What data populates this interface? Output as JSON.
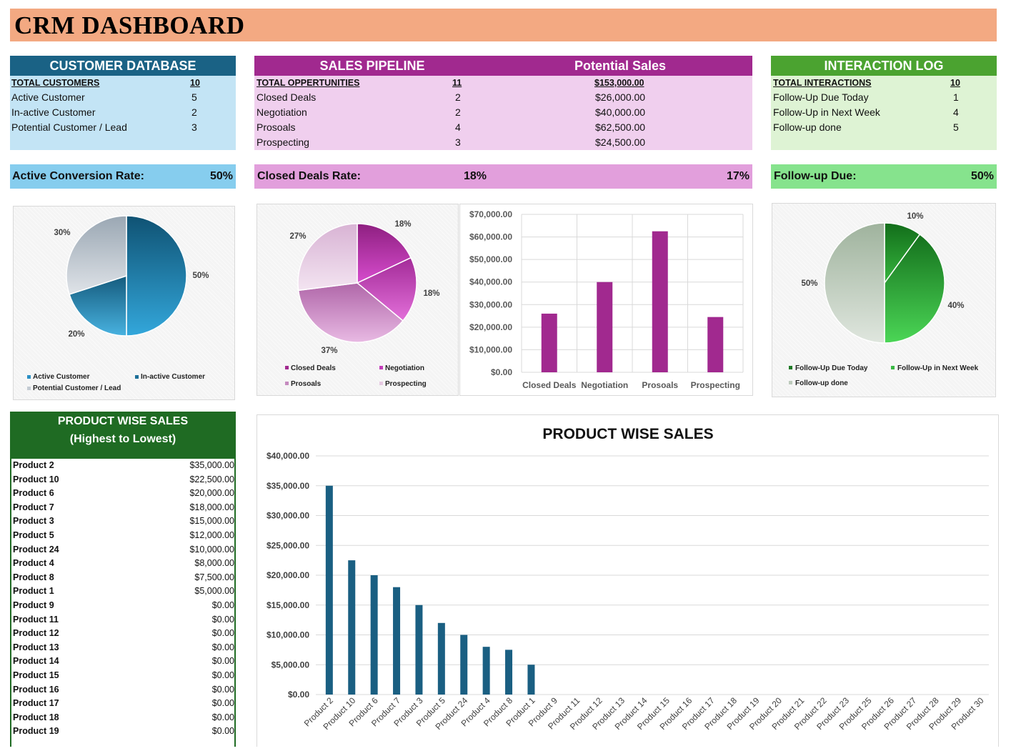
{
  "title": "CRM DASHBOARD",
  "customer_db": {
    "header": "CUSTOMER DATABASE",
    "total_label": "TOTAL CUSTOMERS",
    "total_value": "10",
    "rows": [
      {
        "label": "Active Customer",
        "value": "5"
      },
      {
        "label": "In-active Customer",
        "value": "2"
      },
      {
        "label": "Potential Customer / Lead",
        "value": "3"
      }
    ],
    "rate_label": "Active Conversion Rate:",
    "rate_value": "50%"
  },
  "pipeline": {
    "header": "SALES PIPELINE",
    "header2": "Potential Sales",
    "total_label": "TOTAL OPPERTUNITIES",
    "total_value": "11",
    "total_sales": "$153,000.00",
    "rows": [
      {
        "label": "Closed Deals",
        "value": "2",
        "sales": "$26,000.00"
      },
      {
        "label": "Negotiation",
        "value": "2",
        "sales": "$40,000.00"
      },
      {
        "label": "Prosoals",
        "value": "4",
        "sales": "$62,500.00"
      },
      {
        "label": "Prospecting",
        "value": "3",
        "sales": "$24,500.00"
      }
    ],
    "rate_label": "Closed Deals Rate:",
    "rate_value": "18%",
    "rate_value2": "17%"
  },
  "interaction": {
    "header": "INTERACTION LOG",
    "total_label": "TOTAL INTERACTIONS",
    "total_value": "10",
    "rows": [
      {
        "label": "Follow-Up Due Today",
        "value": "1"
      },
      {
        "label": "Follow-Up in Next Week",
        "value": "4"
      },
      {
        "label": "Follow-up done",
        "value": "5"
      }
    ],
    "rate_label": "Follow-up Due:",
    "rate_value": "50%"
  },
  "product_table": {
    "header1": "PRODUCT WISE SALES",
    "header2": "(Highest to Lowest)",
    "rows": [
      {
        "label": "Product 2",
        "value": "$35,000.00"
      },
      {
        "label": "Product 10",
        "value": "$22,500.00"
      },
      {
        "label": "Product 6",
        "value": "$20,000.00"
      },
      {
        "label": "Product 7",
        "value": "$18,000.00"
      },
      {
        "label": "Product 3",
        "value": "$15,000.00"
      },
      {
        "label": "Product 5",
        "value": "$12,000.00"
      },
      {
        "label": "Product 24",
        "value": "$10,000.00"
      },
      {
        "label": "Product 4",
        "value": "$8,000.00"
      },
      {
        "label": "Product 8",
        "value": "$7,500.00"
      },
      {
        "label": "Product 1",
        "value": "$5,000.00"
      },
      {
        "label": "Product 9",
        "value": "$0.00"
      },
      {
        "label": "Product 11",
        "value": "$0.00"
      },
      {
        "label": "Product 12",
        "value": "$0.00"
      },
      {
        "label": "Product 13",
        "value": "$0.00"
      },
      {
        "label": "Product 14",
        "value": "$0.00"
      },
      {
        "label": "Product 15",
        "value": "$0.00"
      },
      {
        "label": "Product 16",
        "value": "$0.00"
      },
      {
        "label": "Product 17",
        "value": "$0.00"
      },
      {
        "label": "Product 18",
        "value": "$0.00"
      },
      {
        "label": "Product 19",
        "value": "$0.00"
      }
    ]
  },
  "colors": {
    "banner": "#f3a982",
    "customer_header": "#1a6285",
    "customer_body": "#c3e4f5",
    "customer_rate": "#86cdee",
    "pipeline_header": "#a1298f",
    "pipeline_body": "#f0cfee",
    "pipeline_rate": "#e29fdc",
    "interaction_header": "#4ba330",
    "interaction_body": "#def3d4",
    "interaction_rate": "#86e38d",
    "product_header": "#1f6b23",
    "product_bar": "#1a5f82",
    "pipeline_bar": "#a1298f"
  },
  "chart_data": [
    {
      "type": "pie",
      "id": "customer",
      "labels": [
        "Active Customer",
        "In-active Customer",
        "Potential Customer / Lead"
      ],
      "values": [
        50,
        20,
        30
      ],
      "display": [
        "50%",
        "20%",
        "30%"
      ],
      "legend": "bottom"
    },
    {
      "type": "pie",
      "id": "pipeline",
      "labels": [
        "Closed Deals",
        "Negotiation",
        "Prosoals",
        "Prospecting"
      ],
      "values": [
        18,
        18,
        37,
        27
      ],
      "display": [
        "18%",
        "18%",
        "37%",
        "27%"
      ],
      "legend": "bottom"
    },
    {
      "type": "bar",
      "id": "pipeline_sales",
      "categories": [
        "Closed Deals",
        "Negotiation",
        "Prosoals",
        "Prospecting"
      ],
      "values": [
        26000,
        40000,
        62500,
        24500
      ],
      "ylim": [
        0,
        70000
      ],
      "yticks": [
        "$0.00",
        "$10,000.00",
        "$20,000.00",
        "$30,000.00",
        "$40,000.00",
        "$50,000.00",
        "$60,000.00",
        "$70,000.00"
      ],
      "grid": true
    },
    {
      "type": "pie",
      "id": "interaction",
      "labels": [
        "Follow-Up Due Today",
        "Follow-Up in Next Week",
        "Follow-up done"
      ],
      "values": [
        10,
        40,
        50
      ],
      "display": [
        "10%",
        "40%",
        "50%"
      ],
      "legend": "bottom"
    },
    {
      "type": "bar",
      "id": "product",
      "title": "PRODUCT WISE SALES",
      "categories": [
        "Product 2",
        "Product 10",
        "Product 6",
        "Product 7",
        "Product 3",
        "Product 5",
        "Product 24",
        "Product 4",
        "Product 8",
        "Product 1",
        "Product 9",
        "Product 11",
        "Product 12",
        "Product 13",
        "Product 14",
        "Product 15",
        "Product 16",
        "Product 17",
        "Product 18",
        "Product 19",
        "Product 20",
        "Product 21",
        "Product 22",
        "Product 23",
        "Product 25",
        "Product 26",
        "Product 27",
        "Product 28",
        "Product 29",
        "Product 30"
      ],
      "values": [
        35000,
        22500,
        20000,
        18000,
        15000,
        12000,
        10000,
        8000,
        7500,
        5000,
        0,
        0,
        0,
        0,
        0,
        0,
        0,
        0,
        0,
        0,
        0,
        0,
        0,
        0,
        0,
        0,
        0,
        0,
        0,
        0
      ],
      "ylim": [
        0,
        40000
      ],
      "yticks": [
        "$0.00",
        "$5,000.00",
        "$10,000.00",
        "$15,000.00",
        "$20,000.00",
        "$25,000.00",
        "$30,000.00",
        "$35,000.00",
        "$40,000.00"
      ],
      "grid": true
    }
  ]
}
